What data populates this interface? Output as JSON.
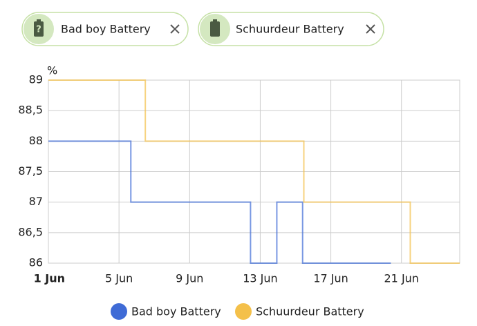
{
  "chart_data": {
    "type": "step-line",
    "y_label": "%",
    "xlim": [
      1,
      24.3
    ],
    "xticks": [
      {
        "value": 1,
        "label": "1 Jun"
      },
      {
        "value": 5,
        "label": "5 Jun"
      },
      {
        "value": 9,
        "label": "9 Jun"
      },
      {
        "value": 13,
        "label": "13 Jun"
      },
      {
        "value": 17,
        "label": "17 Jun"
      },
      {
        "value": 21,
        "label": "21 Jun"
      }
    ],
    "ylim": [
      86,
      89
    ],
    "yticks": [
      86,
      {
        "value": 86.5,
        "label": "86,5"
      },
      87,
      {
        "value": 87.5,
        "label": "87,5"
      },
      88,
      {
        "value": 88.5,
        "label": "88,5"
      },
      89
    ],
    "grid": true,
    "legend": "bottom",
    "series": [
      {
        "name": "Bad boy Battery",
        "color": "#3f6bd6",
        "x": [
          1,
          5.67,
          12.45,
          13.94,
          15.4,
          20.4
        ],
        "values": [
          88,
          87,
          86,
          87,
          86,
          86
        ]
      },
      {
        "name": "Schuurdeur Battery",
        "color": "#f4c04a",
        "x": [
          1,
          6.49,
          15.47,
          21.5,
          24.3
        ],
        "values": [
          89,
          88,
          87,
          86,
          86
        ]
      }
    ]
  }
}
